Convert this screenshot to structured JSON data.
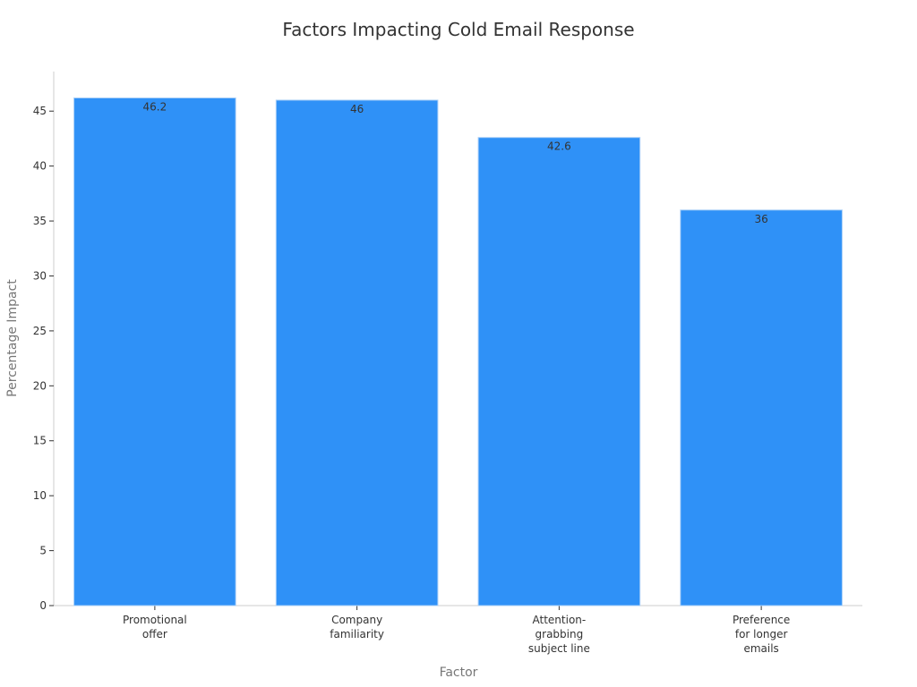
{
  "chart_data": {
    "type": "bar",
    "title": "Factors Impacting Cold Email Response",
    "x_label": "Factor",
    "y_label": "Percentage Impact",
    "categories": [
      "Promotional\noffer",
      "Company\nfamiliarity",
      "Attention-\ngrabbing\nsubject line",
      "Preference\nfor longer\nemails"
    ],
    "values": [
      46.2,
      46,
      42.6,
      36
    ],
    "color": "#2f91f7",
    "ylim": [
      0,
      48.6
    ],
    "yticks": [
      0,
      5,
      10,
      15,
      20,
      25,
      30,
      35,
      40,
      45
    ],
    "grid": false
  }
}
